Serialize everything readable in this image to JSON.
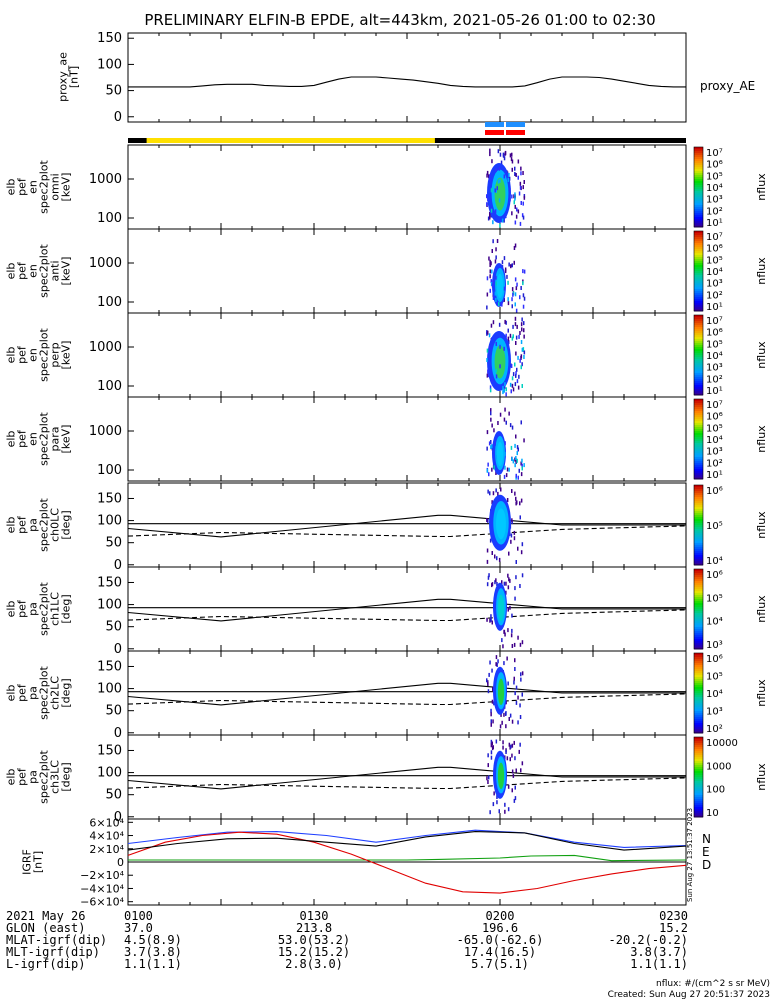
{
  "title": "PRELIMINARY ELFIN-B EPDE, alt=443km, 2021-05-26 01:00 to 02:30",
  "chart_data": {
    "type": "multi-panel",
    "time_range": [
      "2021-05-26 01:00",
      "2021-05-26 02:30"
    ],
    "panels": [
      {
        "id": "proxy_ae",
        "type": "line",
        "ylabel": [
          "proxy_ae",
          "[nT]"
        ],
        "yticks": [
          0,
          50,
          100,
          150
        ],
        "ylim": [
          -10,
          160
        ],
        "legend": "proxy_AE",
        "series": [
          {
            "x": [
              0,
              2,
              4,
              6,
              8,
              10,
              12,
              14,
              16,
              18,
              20,
              22,
              24,
              26,
              28,
              30,
              32,
              34,
              36,
              38,
              40,
              42,
              44,
              46,
              48,
              50,
              52,
              54,
              56,
              58,
              60,
              62,
              64,
              66,
              68,
              70,
              72,
              74,
              76,
              78,
              80,
              82,
              84,
              86,
              88,
              90
            ],
            "y": [
              57,
              57,
              57,
              57,
              57,
              57,
              59,
              61,
              62,
              62,
              62,
              60,
              59,
              58,
              58,
              60,
              66,
              72,
              76,
              76,
              76,
              74,
              72,
              70,
              67,
              64,
              60,
              58,
              57,
              57,
              57,
              57,
              59,
              65,
              72,
              76,
              76,
              76,
              75,
              72,
              68,
              64,
              60,
              58,
              57,
              57
            ]
          }
        ]
      },
      {
        "id": "omni",
        "type": "heatmap",
        "ylabel": [
          "elb",
          "pef",
          "en",
          "spec2plot",
          "omni",
          "[keV]"
        ],
        "yticks": [
          100,
          1000
        ],
        "colorbar": {
          "label": "nflux",
          "ticks": [
            "10⁷",
            "10⁶",
            "10⁵",
            "10⁴",
            "10³",
            "10²",
            "10¹"
          ]
        }
      },
      {
        "id": "anti",
        "type": "heatmap",
        "ylabel": [
          "elb",
          "pef",
          "en",
          "spec2plot",
          "anti",
          "[keV]"
        ],
        "yticks": [
          100,
          1000
        ],
        "colorbar": {
          "label": "nflux",
          "ticks": [
            "10⁷",
            "10⁶",
            "10⁵",
            "10⁴",
            "10³",
            "10²",
            "10¹"
          ]
        }
      },
      {
        "id": "perp",
        "type": "heatmap",
        "ylabel": [
          "elb",
          "pef",
          "en",
          "spec2plot",
          "perp",
          "[keV]"
        ],
        "yticks": [
          100,
          1000
        ],
        "colorbar": {
          "label": "nflux",
          "ticks": [
            "10⁷",
            "10⁶",
            "10⁵",
            "10⁴",
            "10³",
            "10²",
            "10¹"
          ]
        }
      },
      {
        "id": "para",
        "type": "heatmap",
        "ylabel": [
          "elb",
          "pef",
          "en",
          "spec2plot",
          "para",
          "[keV]"
        ],
        "yticks": [
          100,
          1000
        ],
        "colorbar": {
          "label": "nflux",
          "ticks": [
            "10⁷",
            "10⁶",
            "10⁵",
            "10⁴",
            "10³",
            "10²",
            "10¹"
          ]
        }
      },
      {
        "id": "ch0LC",
        "type": "heatmap",
        "ylabel": [
          "elb",
          "pef",
          "pa",
          "spec2plot",
          "ch0LC",
          "[deg]"
        ],
        "yticks": [
          0,
          50,
          100,
          150
        ],
        "colorbar": {
          "label": "nflux",
          "ticks": [
            "10⁶",
            "10⁵",
            "10⁴"
          ]
        }
      },
      {
        "id": "ch1LC",
        "type": "heatmap",
        "ylabel": [
          "elb",
          "pef",
          "pa",
          "spec2plot",
          "ch1LC",
          "[deg]"
        ],
        "yticks": [
          0,
          50,
          100,
          150
        ],
        "colorbar": {
          "label": "nflux",
          "ticks": [
            "10⁶",
            "10⁵",
            "10⁴",
            "10³"
          ]
        }
      },
      {
        "id": "ch2LC",
        "type": "heatmap",
        "ylabel": [
          "elb",
          "pef",
          "pa",
          "spec2plot",
          "ch2LC",
          "[deg]"
        ],
        "yticks": [
          0,
          50,
          100,
          150
        ],
        "colorbar": {
          "label": "nflux",
          "ticks": [
            "10⁶",
            "10⁵",
            "10⁴",
            "10³",
            "10²"
          ]
        }
      },
      {
        "id": "ch3LC",
        "type": "heatmap",
        "ylabel": [
          "elb",
          "pef",
          "pa",
          "spec2plot",
          "ch3LC",
          "[deg]"
        ],
        "yticks": [
          0,
          50,
          100,
          150
        ],
        "colorbar": {
          "label": "nflux",
          "ticks": [
            "10000",
            "1000",
            "100",
            "10"
          ]
        }
      },
      {
        "id": "igrf",
        "type": "line",
        "ylabel": [
          "IGRF",
          "[nT]"
        ],
        "yticks": [
          "6×10⁴",
          "4×10⁴",
          "2×10⁴",
          "0",
          "−2×10⁴",
          "−4×10⁴",
          "−6×10⁴"
        ],
        "ylim": [
          -65000,
          65000
        ],
        "legend": [
          "N",
          "E",
          "D"
        ],
        "series": [
          {
            "name": "N",
            "x": [
              0,
              8,
              16,
              24,
              32,
              40,
              48,
              56,
              64,
              72,
              80,
              90
            ],
            "y": [
              28000,
              37000,
              45000,
              46000,
              40000,
              30000,
              40000,
              48000,
              44000,
              30000,
              22000,
              25000
            ]
          },
          {
            "name": "E",
            "x": [
              0,
              15,
              30,
              45,
              50,
              60,
              65,
              72,
              78,
              90
            ],
            "y": [
              3000,
              3000,
              3000,
              3000,
              4000,
              6000,
              9000,
              10000,
              2000,
              3000
            ]
          },
          {
            "name": "D",
            "x": [
              0,
              6,
              12,
              18,
              24,
              30,
              36,
              42,
              48,
              54,
              60,
              66,
              72,
              78,
              84,
              90
            ],
            "y": [
              10000,
              30000,
              40000,
              45000,
              42000,
              30000,
              12000,
              -10000,
              -32000,
              -45000,
              -47000,
              -40000,
              -28000,
              -18000,
              -10000,
              -5000
            ]
          }
        ]
      }
    ],
    "pa_lines": {
      "solid_a": {
        "x": [
          0,
          15,
          50,
          52,
          70,
          90
        ],
        "y": [
          82,
          63,
          112,
          112,
          90,
          90
        ]
      },
      "solid_b": {
        "x": [
          0,
          90
        ],
        "y": [
          93,
          93
        ]
      },
      "dashed": {
        "x": [
          0,
          15,
          50,
          52,
          70,
          90
        ],
        "y": [
          65,
          73,
          64,
          64,
          80,
          88
        ]
      }
    }
  },
  "status_bar": {
    "colors": {
      "black": "#000000",
      "yellow": "#ffe000",
      "blue": "#1f8fff",
      "red": "#ff0000"
    }
  },
  "footer": {
    "rows": [
      {
        "label": "2021 May 26",
        "values": [
          "0100",
          "0130",
          "0200",
          "0230"
        ]
      },
      {
        "label": "GLON (east)",
        "values": [
          "37.0",
          "213.8",
          "196.6",
          "15.2"
        ]
      },
      {
        "label": "MLAT-igrf(dip)",
        "values": [
          "4.5(8.9)",
          "53.0(53.2)",
          "-65.0(-62.6)",
          "-20.2(-0.2)"
        ]
      },
      {
        "label": "MLT-igrf(dip)",
        "values": [
          "3.7(3.8)",
          "15.2(15.2)",
          "17.4(16.5)",
          "3.8(3.7)"
        ]
      },
      {
        "label": "L-igrf(dip)",
        "values": [
          "1.1(1.1)",
          "2.8(3.0)",
          "5.7(5.1)",
          "1.1(1.1)"
        ]
      }
    ],
    "units_note": "nflux: #/(cm^2 s sr MeV)",
    "created": "Created: Sun Aug 27 20:51:37 2023",
    "side_stamp": "Sun Aug 27 13:51:37 2023"
  },
  "colors": {
    "colorbar_top": "#c00000",
    "colorbar_bottom": "#400080"
  }
}
